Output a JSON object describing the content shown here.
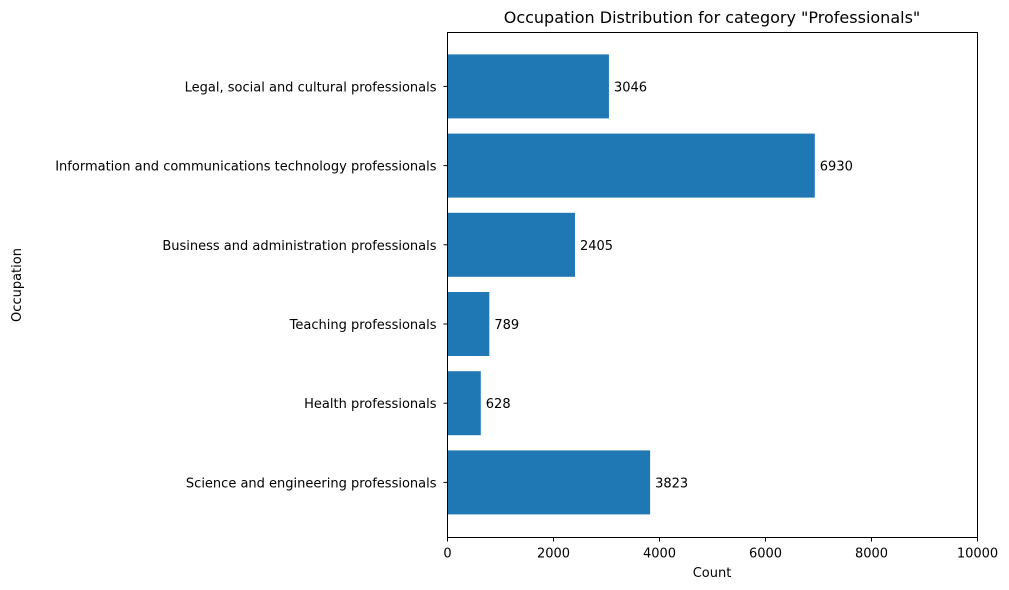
{
  "chart_data": {
    "type": "bar",
    "orientation": "horizontal",
    "title": "Occupation Distribution for category \"Professionals\"",
    "xlabel": "Count",
    "ylabel": "Occupation",
    "xlim": [
      0,
      10000
    ],
    "xticks": [
      "0",
      "2000",
      "4000",
      "6000",
      "8000",
      "10000"
    ],
    "xtick_values": [
      0,
      2000,
      4000,
      6000,
      8000,
      10000
    ],
    "grid": false,
    "legend": "none",
    "bar_color": "#1f77b4",
    "categories": [
      "Legal, social and cultural professionals",
      "Information and communications technology professionals",
      "Business and administration professionals",
      "Teaching professionals",
      "Health professionals",
      "Science and engineering professionals"
    ],
    "values": [
      3046,
      6930,
      2405,
      789,
      628,
      3823
    ],
    "data_labels": [
      "3046",
      "6930",
      "2405",
      "789",
      "628",
      "3823"
    ]
  }
}
